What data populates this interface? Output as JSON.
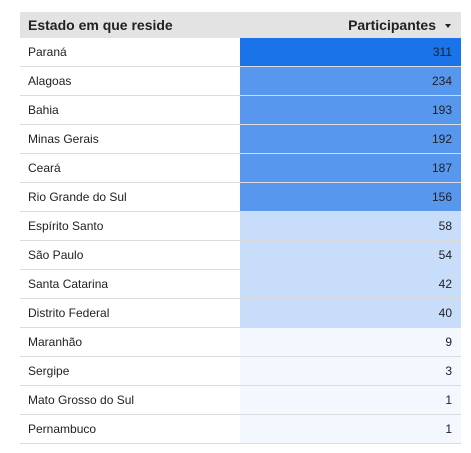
{
  "table": {
    "header": {
      "state_label": "Estado em que reside",
      "count_label": "Participantes",
      "sort_icon": "sort-descending-icon"
    },
    "heat_colors": {
      "high": "#1a73e8",
      "low": "#f3f8fe"
    },
    "rows": [
      {
        "state": "Paraná",
        "count": "311"
      },
      {
        "state": "Alagoas",
        "count": "234"
      },
      {
        "state": "Bahia",
        "count": "193"
      },
      {
        "state": "Minas Gerais",
        "count": "192"
      },
      {
        "state": "Ceará",
        "count": "187"
      },
      {
        "state": "Rio Grande do Sul",
        "count": "156"
      },
      {
        "state": "Espírito Santo",
        "count": "58"
      },
      {
        "state": "São Paulo",
        "count": "54"
      },
      {
        "state": "Santa Catarina",
        "count": "42"
      },
      {
        "state": "Distrito Federal",
        "count": "40"
      },
      {
        "state": "Maranhão",
        "count": "9"
      },
      {
        "state": "Sergipe",
        "count": "3"
      },
      {
        "state": "Mato Grosso do Sul",
        "count": "1"
      },
      {
        "state": "Pernambuco",
        "count": "1"
      }
    ]
  }
}
